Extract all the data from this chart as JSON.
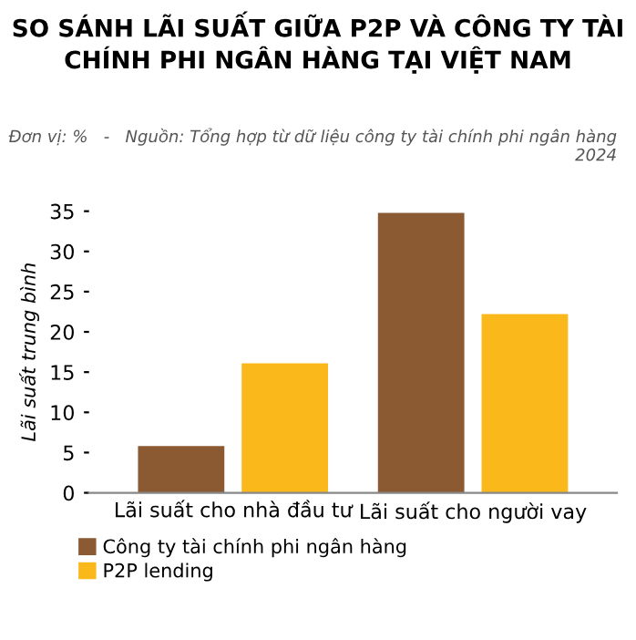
{
  "chart_data": {
    "type": "bar",
    "title": "SO SÁNH LÃI SUẤT GIỮA P2P VÀ CÔNG TY TÀI CHÍNH PHI NGÂN HÀNG TẠI VIỆT NAM",
    "subtitle": "Đơn vị: %   -   Nguồn: Tổng hợp từ dữ liệu công ty tài chính phi ngân hàng 2024",
    "ylabel": "Lãi suất trung bình",
    "categories": [
      "Lãi suất cho nhà đầu tư",
      "Lãi suất cho người vay"
    ],
    "series": [
      {
        "name": "Công ty tài chính phi ngân hàng",
        "color": "#8b5a33",
        "values": [
          5.8,
          34.8
        ]
      },
      {
        "name": "P2P lending",
        "color": "#fbb81b",
        "values": [
          16.1,
          22.2
        ]
      }
    ],
    "ylim": [
      0,
      35
    ],
    "yticks": [
      0,
      5,
      10,
      15,
      20,
      25,
      30,
      35
    ],
    "grid": false,
    "legend": "bottom left"
  }
}
